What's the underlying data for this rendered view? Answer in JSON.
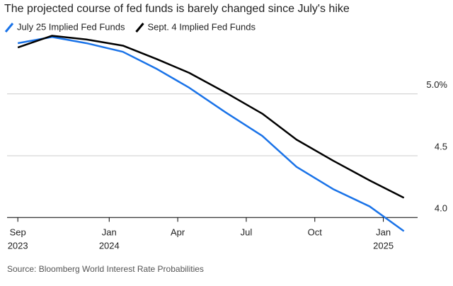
{
  "chart_data": {
    "type": "line",
    "title": "The projected course of fed funds is barely changed since July's hike",
    "source": "Source: Bloomberg World Interest Rate Probabilities",
    "x": [
      0,
      1.5,
      3.0,
      4.6,
      6.1,
      7.5,
      9.1,
      10.7,
      12.2,
      13.8,
      15.4,
      16.9
    ],
    "series": [
      {
        "name": "July 25 Implied Fed Funds",
        "color": "#1a73e8",
        "values": [
          5.41,
          5.46,
          5.41,
          5.34,
          5.2,
          5.05,
          4.85,
          4.66,
          4.41,
          4.23,
          4.09,
          3.89
        ]
      },
      {
        "name": "Sept. 4 Implied Fed Funds",
        "color": "#000000",
        "values": [
          5.375,
          5.47,
          5.44,
          5.39,
          5.28,
          5.17,
          5.01,
          4.84,
          4.63,
          4.46,
          4.3,
          4.16
        ]
      }
    ],
    "xlim": [
      -0.47,
      17.5
    ],
    "xticks": [
      {
        "value": 0,
        "label": "Sep",
        "year": "2023"
      },
      {
        "value": 4,
        "label": "Jan",
        "year": "2024"
      },
      {
        "value": 7,
        "label": "Apr"
      },
      {
        "value": 10,
        "label": "Jul"
      },
      {
        "value": 13,
        "label": "Oct"
      },
      {
        "value": 16,
        "label": "Jan",
        "year": "2025"
      }
    ],
    "ylim": [
      3.87,
      5.53
    ],
    "yticks": [
      {
        "value": 4.0,
        "label": "4.0"
      },
      {
        "value": 4.5,
        "label": "4.5"
      },
      {
        "value": 5.0,
        "label": "5.0%"
      }
    ],
    "grid": true
  }
}
